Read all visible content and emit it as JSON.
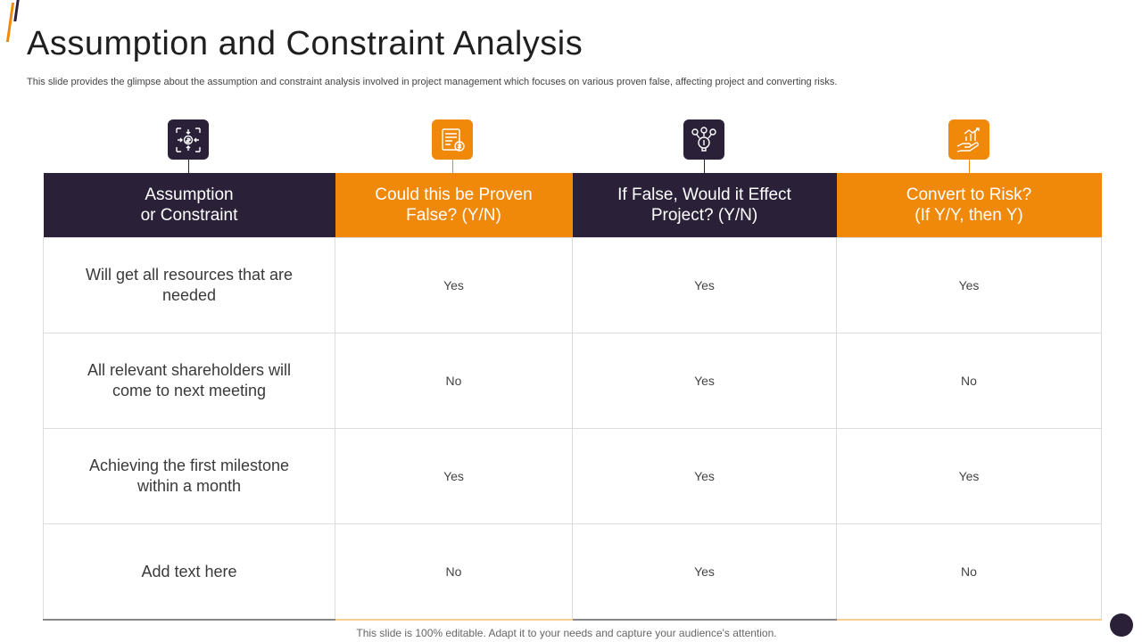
{
  "slide": {
    "title": "Assumption and Constraint Analysis",
    "subtitle": "This slide provides the glimpse about the assumption and constraint analysis involved in project management which focuses on various proven false, affecting project and converting risks.",
    "footer": "This slide is 100% editable. Adapt it to your needs and capture your audience's attention."
  },
  "colors": {
    "dark": "#2a2139",
    "orange": "#f0880a"
  },
  "icons": [
    "process-dollar-icon",
    "document-checklist-icon",
    "lightbulb-ideas-icon",
    "hand-growth-chart-icon"
  ],
  "table": {
    "headers": [
      "Assumption\nor Constraint",
      "Could this be Proven\nFalse? (Y/N)",
      "If False, Would it Effect\nProject? (Y/N)",
      "Convert to Risk?\n(If Y/Y, then Y)"
    ],
    "rows": [
      {
        "label": "Will get all resources that are needed",
        "proven_false": "Yes",
        "effect_project": "Yes",
        "convert_risk": "Yes"
      },
      {
        "label": "All relevant shareholders will come to next meeting",
        "proven_false": "No",
        "effect_project": "Yes",
        "convert_risk": "No"
      },
      {
        "label": "Achieving the first milestone within a month",
        "proven_false": "Yes",
        "effect_project": "Yes",
        "convert_risk": "Yes"
      },
      {
        "label": "Add text here",
        "proven_false": "No",
        "effect_project": "Yes",
        "convert_risk": "No"
      }
    ]
  }
}
